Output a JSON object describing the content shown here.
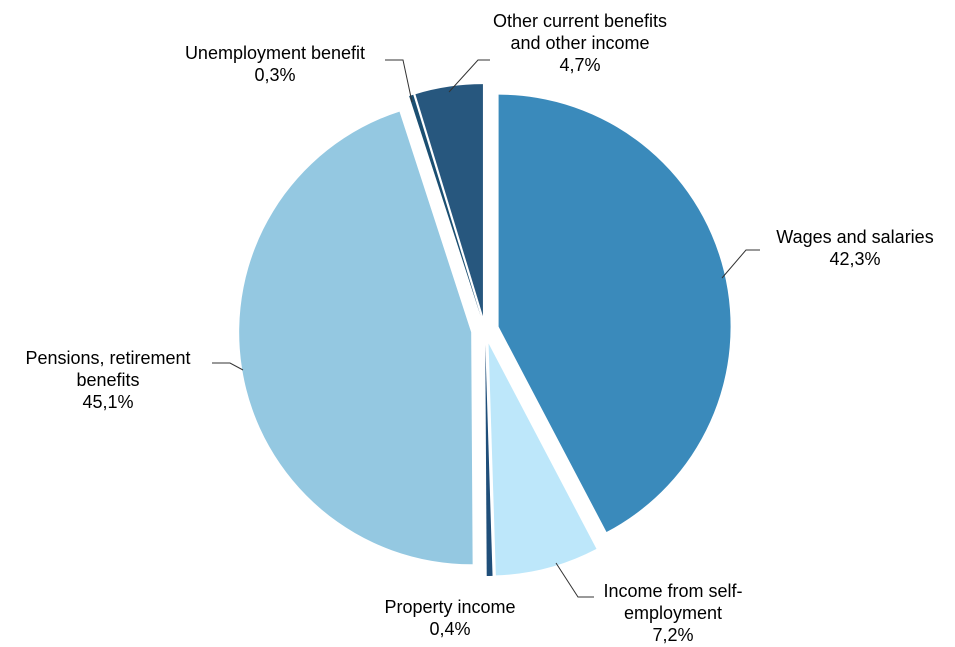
{
  "chart_data": {
    "type": "pie",
    "title": "",
    "start_category": "Wages and salaries",
    "direction": "clockwise",
    "exploded": true,
    "slices": [
      {
        "label_lines": [
          "Wages and salaries"
        ],
        "value": 42.3,
        "value_label": "42,3%",
        "color": "#3a8abb"
      },
      {
        "label_lines": [
          "Income from self-",
          "employment"
        ],
        "value": 7.2,
        "value_label": "7,2%",
        "color": "#bde7fa"
      },
      {
        "label_lines": [
          "Property income"
        ],
        "value": 0.4,
        "value_label": "0,4%",
        "color": "#1f4e79"
      },
      {
        "label_lines": [
          "Pensions, retirement",
          "benefits"
        ],
        "value": 45.1,
        "value_label": "45,1%",
        "color": "#94c8e1"
      },
      {
        "label_lines": [
          "Unemployment benefit"
        ],
        "value": 0.3,
        "value_label": "0,3%",
        "color": "#1b4f72"
      },
      {
        "label_lines": [
          "Other current benefits",
          "and other income"
        ],
        "value": 4.7,
        "value_label": "4,7%",
        "color": "#27577e"
      }
    ]
  }
}
